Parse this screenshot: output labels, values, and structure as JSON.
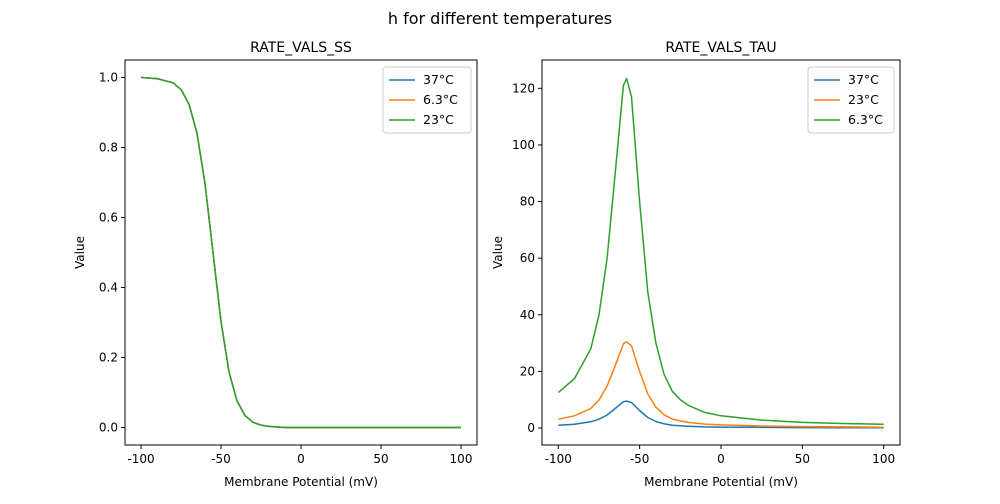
{
  "suptitle": "h for different temperatures",
  "colors": {
    "blue": "#1f77b4",
    "orange": "#ff7f0e",
    "green": "#2ca02c"
  },
  "chart_data": [
    {
      "type": "line",
      "title": "RATE_VALS_SS",
      "xlabel": "Membrane Potential (mV)",
      "ylabel": "Value",
      "xlim": [
        -110,
        110
      ],
      "ylim": [
        -0.05,
        1.05
      ],
      "xticks": [
        -100,
        -50,
        0,
        50,
        100
      ],
      "yticks": [
        0.0,
        0.2,
        0.4,
        0.6,
        0.8,
        1.0
      ],
      "ytick_labels": [
        "0.0",
        "0.2",
        "0.4",
        "0.6",
        "0.8",
        "1.0"
      ],
      "grid": false,
      "legend_position": "top-right",
      "x": [
        -100,
        -90,
        -80,
        -75,
        -70,
        -65,
        -60,
        -55,
        -50,
        -45,
        -40,
        -35,
        -30,
        -25,
        -20,
        -10,
        0,
        50,
        100
      ],
      "series": [
        {
          "name": "37°C",
          "color": "#1f77b4",
          "values": [
            1.0,
            0.997,
            0.985,
            0.966,
            0.924,
            0.841,
            0.697,
            0.5,
            0.303,
            0.159,
            0.076,
            0.034,
            0.015,
            0.007,
            0.003,
            0.0,
            0.0,
            0.0,
            0.0
          ]
        },
        {
          "name": "6.3°C",
          "color": "#ff7f0e",
          "values": [
            1.0,
            0.997,
            0.985,
            0.966,
            0.924,
            0.841,
            0.697,
            0.5,
            0.303,
            0.159,
            0.076,
            0.034,
            0.015,
            0.007,
            0.003,
            0.0,
            0.0,
            0.0,
            0.0
          ]
        },
        {
          "name": "23°C",
          "color": "#2ca02c",
          "values": [
            1.0,
            0.997,
            0.985,
            0.966,
            0.924,
            0.841,
            0.697,
            0.5,
            0.303,
            0.159,
            0.076,
            0.034,
            0.015,
            0.007,
            0.003,
            0.0,
            0.0,
            0.0,
            0.0
          ]
        }
      ]
    },
    {
      "type": "line",
      "title": "RATE_VALS_TAU",
      "xlabel": "Membrane Potential (mV)",
      "ylabel": "Value",
      "xlim": [
        -110,
        110
      ],
      "ylim": [
        -6,
        130
      ],
      "xticks": [
        -100,
        -50,
        0,
        50,
        100
      ],
      "yticks": [
        0,
        20,
        40,
        60,
        80,
        100,
        120
      ],
      "ytick_labels": [
        "0",
        "20",
        "40",
        "60",
        "80",
        "100",
        "120"
      ],
      "grid": false,
      "legend_position": "top-right",
      "x": [
        -100,
        -90,
        -80,
        -75,
        -70,
        -65,
        -60,
        -58,
        -55,
        -50,
        -45,
        -40,
        -35,
        -30,
        -25,
        -20,
        -10,
        0,
        25,
        50,
        75,
        100
      ],
      "series": [
        {
          "name": "37°C",
          "color": "#1f77b4",
          "values": [
            1.0,
            1.35,
            2.2,
            3.1,
            4.6,
            6.9,
            9.3,
            9.5,
            9.0,
            6.2,
            3.7,
            2.3,
            1.5,
            1.0,
            0.8,
            0.6,
            0.4,
            0.33,
            0.2,
            0.15,
            0.12,
            0.1
          ]
        },
        {
          "name": "23°C",
          "color": "#ff7f0e",
          "values": [
            3.1,
            4.3,
            6.9,
            9.9,
            14.8,
            22,
            29.8,
            30.5,
            29,
            20,
            12,
            7.4,
            4.7,
            3.2,
            2.5,
            2.0,
            1.4,
            1.1,
            0.7,
            0.5,
            0.4,
            0.3
          ]
        },
        {
          "name": "6.3°C",
          "color": "#2ca02c",
          "values": [
            12.5,
            17.5,
            28,
            40,
            60,
            90,
            121,
            123.5,
            117,
            80,
            48,
            30,
            19,
            13,
            10,
            8,
            5.5,
            4.3,
            2.8,
            2.0,
            1.6,
            1.3
          ]
        }
      ]
    }
  ]
}
